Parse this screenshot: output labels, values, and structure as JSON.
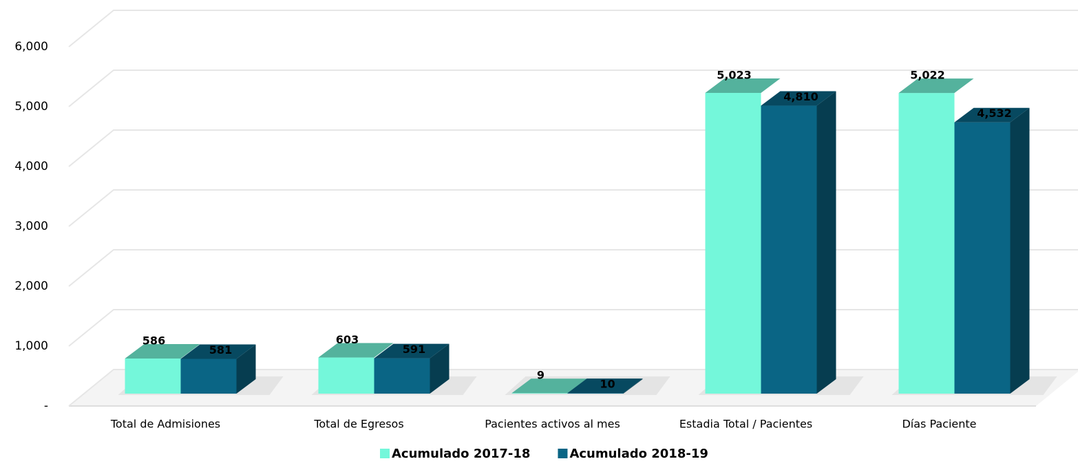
{
  "chart_data": {
    "type": "bar3d",
    "categories": [
      "Total de Admisiones",
      "Total de Egresos",
      "Pacientes activos al mes",
      "Estadia Total / Pacientes",
      "Días Paciente"
    ],
    "series": [
      {
        "name": "Acumulado 2017-18",
        "color": "#74f7da",
        "values": [
          586,
          603,
          9,
          5023,
          5022
        ],
        "value_labels": [
          "586",
          "603",
          "9",
          "5,023",
          "5,022"
        ]
      },
      {
        "name": "Acumulado 2018-19",
        "color": "#0a6585",
        "values": [
          581,
          591,
          10,
          4810,
          4532
        ],
        "value_labels": [
          "581",
          "591",
          "10",
          "4,810",
          "4,532"
        ]
      }
    ],
    "ylim": [
      0,
      6000
    ],
    "yticks": [
      {
        "value": 0,
        "label": "-"
      },
      {
        "value": 1000,
        "label": "1,000"
      },
      {
        "value": 2000,
        "label": "2,000"
      },
      {
        "value": 3000,
        "label": "3,000"
      },
      {
        "value": 4000,
        "label": "4,000"
      },
      {
        "value": 5000,
        "label": "5,000"
      },
      {
        "value": 6000,
        "label": "6,000"
      }
    ],
    "grid": true,
    "legend": "bottom"
  }
}
